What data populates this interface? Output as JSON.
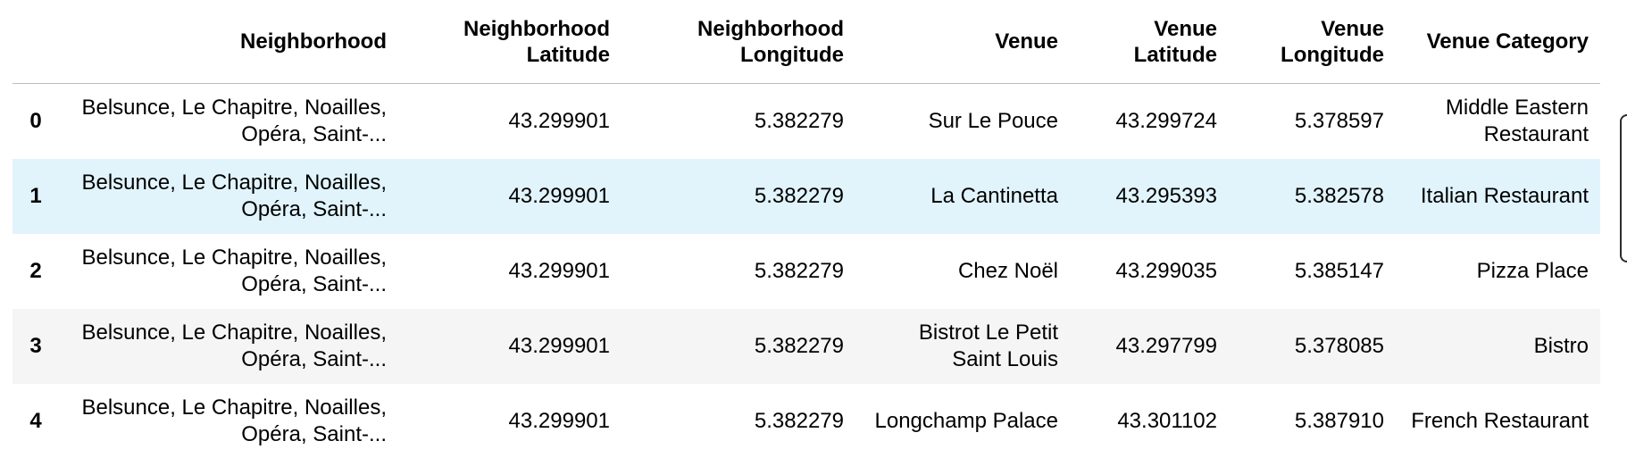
{
  "table": {
    "columns": [
      "",
      "Neighborhood",
      "Neighborhood Latitude",
      "Neighborhood Longitude",
      "Venue",
      "Venue Latitude",
      "Venue Longitude",
      "Venue Category"
    ],
    "column_lines": [
      [
        ""
      ],
      [
        "Neighborhood"
      ],
      [
        "Neighborhood",
        "Latitude"
      ],
      [
        "Neighborhood",
        "Longitude"
      ],
      [
        "Venue"
      ],
      [
        "Venue",
        "Latitude"
      ],
      [
        "Venue",
        "Longitude"
      ],
      [
        "Venue Category"
      ]
    ],
    "rows": [
      {
        "index": "0",
        "neighborhood": [
          "Belsunce, Le Chapitre, Noailles,",
          "Opéra, Saint-..."
        ],
        "neighborhood_latitude": "43.299901",
        "neighborhood_longitude": "5.382279",
        "venue": [
          "Sur Le Pouce"
        ],
        "venue_latitude": "43.299724",
        "venue_longitude": "5.378597",
        "venue_category": [
          "Middle Eastern",
          "Restaurant"
        ]
      },
      {
        "index": "1",
        "neighborhood": [
          "Belsunce, Le Chapitre, Noailles,",
          "Opéra, Saint-..."
        ],
        "neighborhood_latitude": "43.299901",
        "neighborhood_longitude": "5.382279",
        "venue": [
          "La Cantinetta"
        ],
        "venue_latitude": "43.295393",
        "venue_longitude": "5.382578",
        "venue_category": [
          "Italian Restaurant"
        ]
      },
      {
        "index": "2",
        "neighborhood": [
          "Belsunce, Le Chapitre, Noailles,",
          "Opéra, Saint-..."
        ],
        "neighborhood_latitude": "43.299901",
        "neighborhood_longitude": "5.382279",
        "venue": [
          "Chez Noël"
        ],
        "venue_latitude": "43.299035",
        "venue_longitude": "5.385147",
        "venue_category": [
          "Pizza Place"
        ]
      },
      {
        "index": "3",
        "neighborhood": [
          "Belsunce, Le Chapitre, Noailles,",
          "Opéra, Saint-..."
        ],
        "neighborhood_latitude": "43.299901",
        "neighborhood_longitude": "5.382279",
        "venue": [
          "Bistrot Le Petit",
          "Saint Louis"
        ],
        "venue_latitude": "43.297799",
        "venue_longitude": "5.378085",
        "venue_category": [
          "Bistro"
        ]
      },
      {
        "index": "4",
        "neighborhood": [
          "Belsunce, Le Chapitre, Noailles,",
          "Opéra, Saint-..."
        ],
        "neighborhood_latitude": "43.299901",
        "neighborhood_longitude": "5.382279",
        "venue": [
          "Longchamp Palace"
        ],
        "venue_latitude": "43.301102",
        "venue_longitude": "5.387910",
        "venue_category": [
          "French Restaurant"
        ]
      }
    ],
    "hovered_row": 1,
    "colors": {
      "hover_row": "#e1f4fc",
      "striped_row": "#f5f5f5",
      "header_rule": "#bdbdbd"
    }
  }
}
